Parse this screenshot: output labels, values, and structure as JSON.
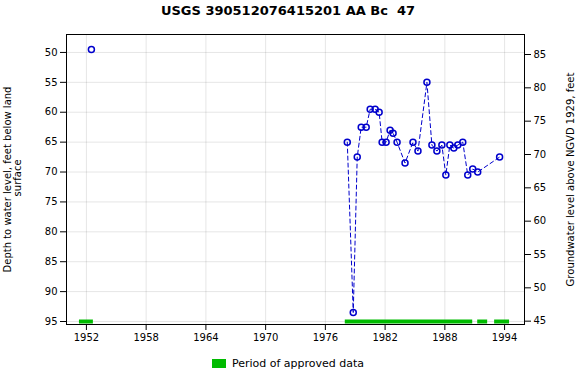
{
  "chart_data": {
    "type": "line",
    "title": "USGS 390512076415201 AA Bc  47",
    "xlim": [
      1950,
      1996
    ],
    "xticks": [
      1952,
      1958,
      1964,
      1970,
      1976,
      1982,
      1988,
      1994
    ],
    "ylabel": "Depth to water level, feet below land\n surface",
    "ylim": [
      95.5,
      47
    ],
    "yticks": [
      50,
      55,
      60,
      65,
      70,
      75,
      80,
      85,
      90,
      95
    ],
    "y2label": "Groundwater level above NGVD 1929, feet",
    "y2lim": [
      44.5,
      88
    ],
    "y2ticks": [
      85,
      80,
      75,
      70,
      65,
      60,
      55,
      50,
      45
    ],
    "grid": true,
    "legend": "bottom",
    "series": [
      {
        "x": [
          1952.5
        ],
        "values": [
          49.5
        ],
        "color": "#0000cc",
        "marker": "circle",
        "line_style": "dashed"
      },
      {
        "x": [
          1978.2,
          1978.8,
          1979.2,
          1979.6,
          1980.1,
          1980.5,
          1981.0,
          1981.4,
          1981.7,
          1982.1,
          1982.5,
          1982.8,
          1983.2,
          1984.0,
          1984.8,
          1985.3,
          1986.2,
          1986.7,
          1987.2,
          1987.7,
          1988.1,
          1988.5,
          1988.9,
          1989.3,
          1989.8,
          1990.3,
          1990.8,
          1991.3,
          1993.5
        ],
        "values": [
          65.0,
          93.5,
          67.5,
          62.5,
          62.5,
          59.5,
          59.5,
          60.0,
          65.0,
          65.0,
          63.0,
          63.5,
          65.0,
          68.5,
          65.0,
          66.5,
          55.0,
          65.5,
          66.5,
          65.5,
          70.5,
          65.5,
          66.0,
          65.5,
          65.0,
          70.5,
          69.5,
          70.0,
          67.5
        ],
        "color": "#0000cc",
        "marker": "circle",
        "line_style": "dashed"
      },
      {
        "name": "Period of approved data",
        "type": "bar",
        "orientation": "horizontal",
        "color": "#00bb00",
        "values": [
          95.0,
          95.0,
          95.0,
          95.0
        ],
        "x_ranges": [
          [
            1951.3,
            1952.7
          ],
          [
            1978.0,
            1990.8
          ],
          [
            1991.3,
            1992.3
          ],
          [
            1993.0,
            1994.5
          ]
        ]
      }
    ]
  }
}
